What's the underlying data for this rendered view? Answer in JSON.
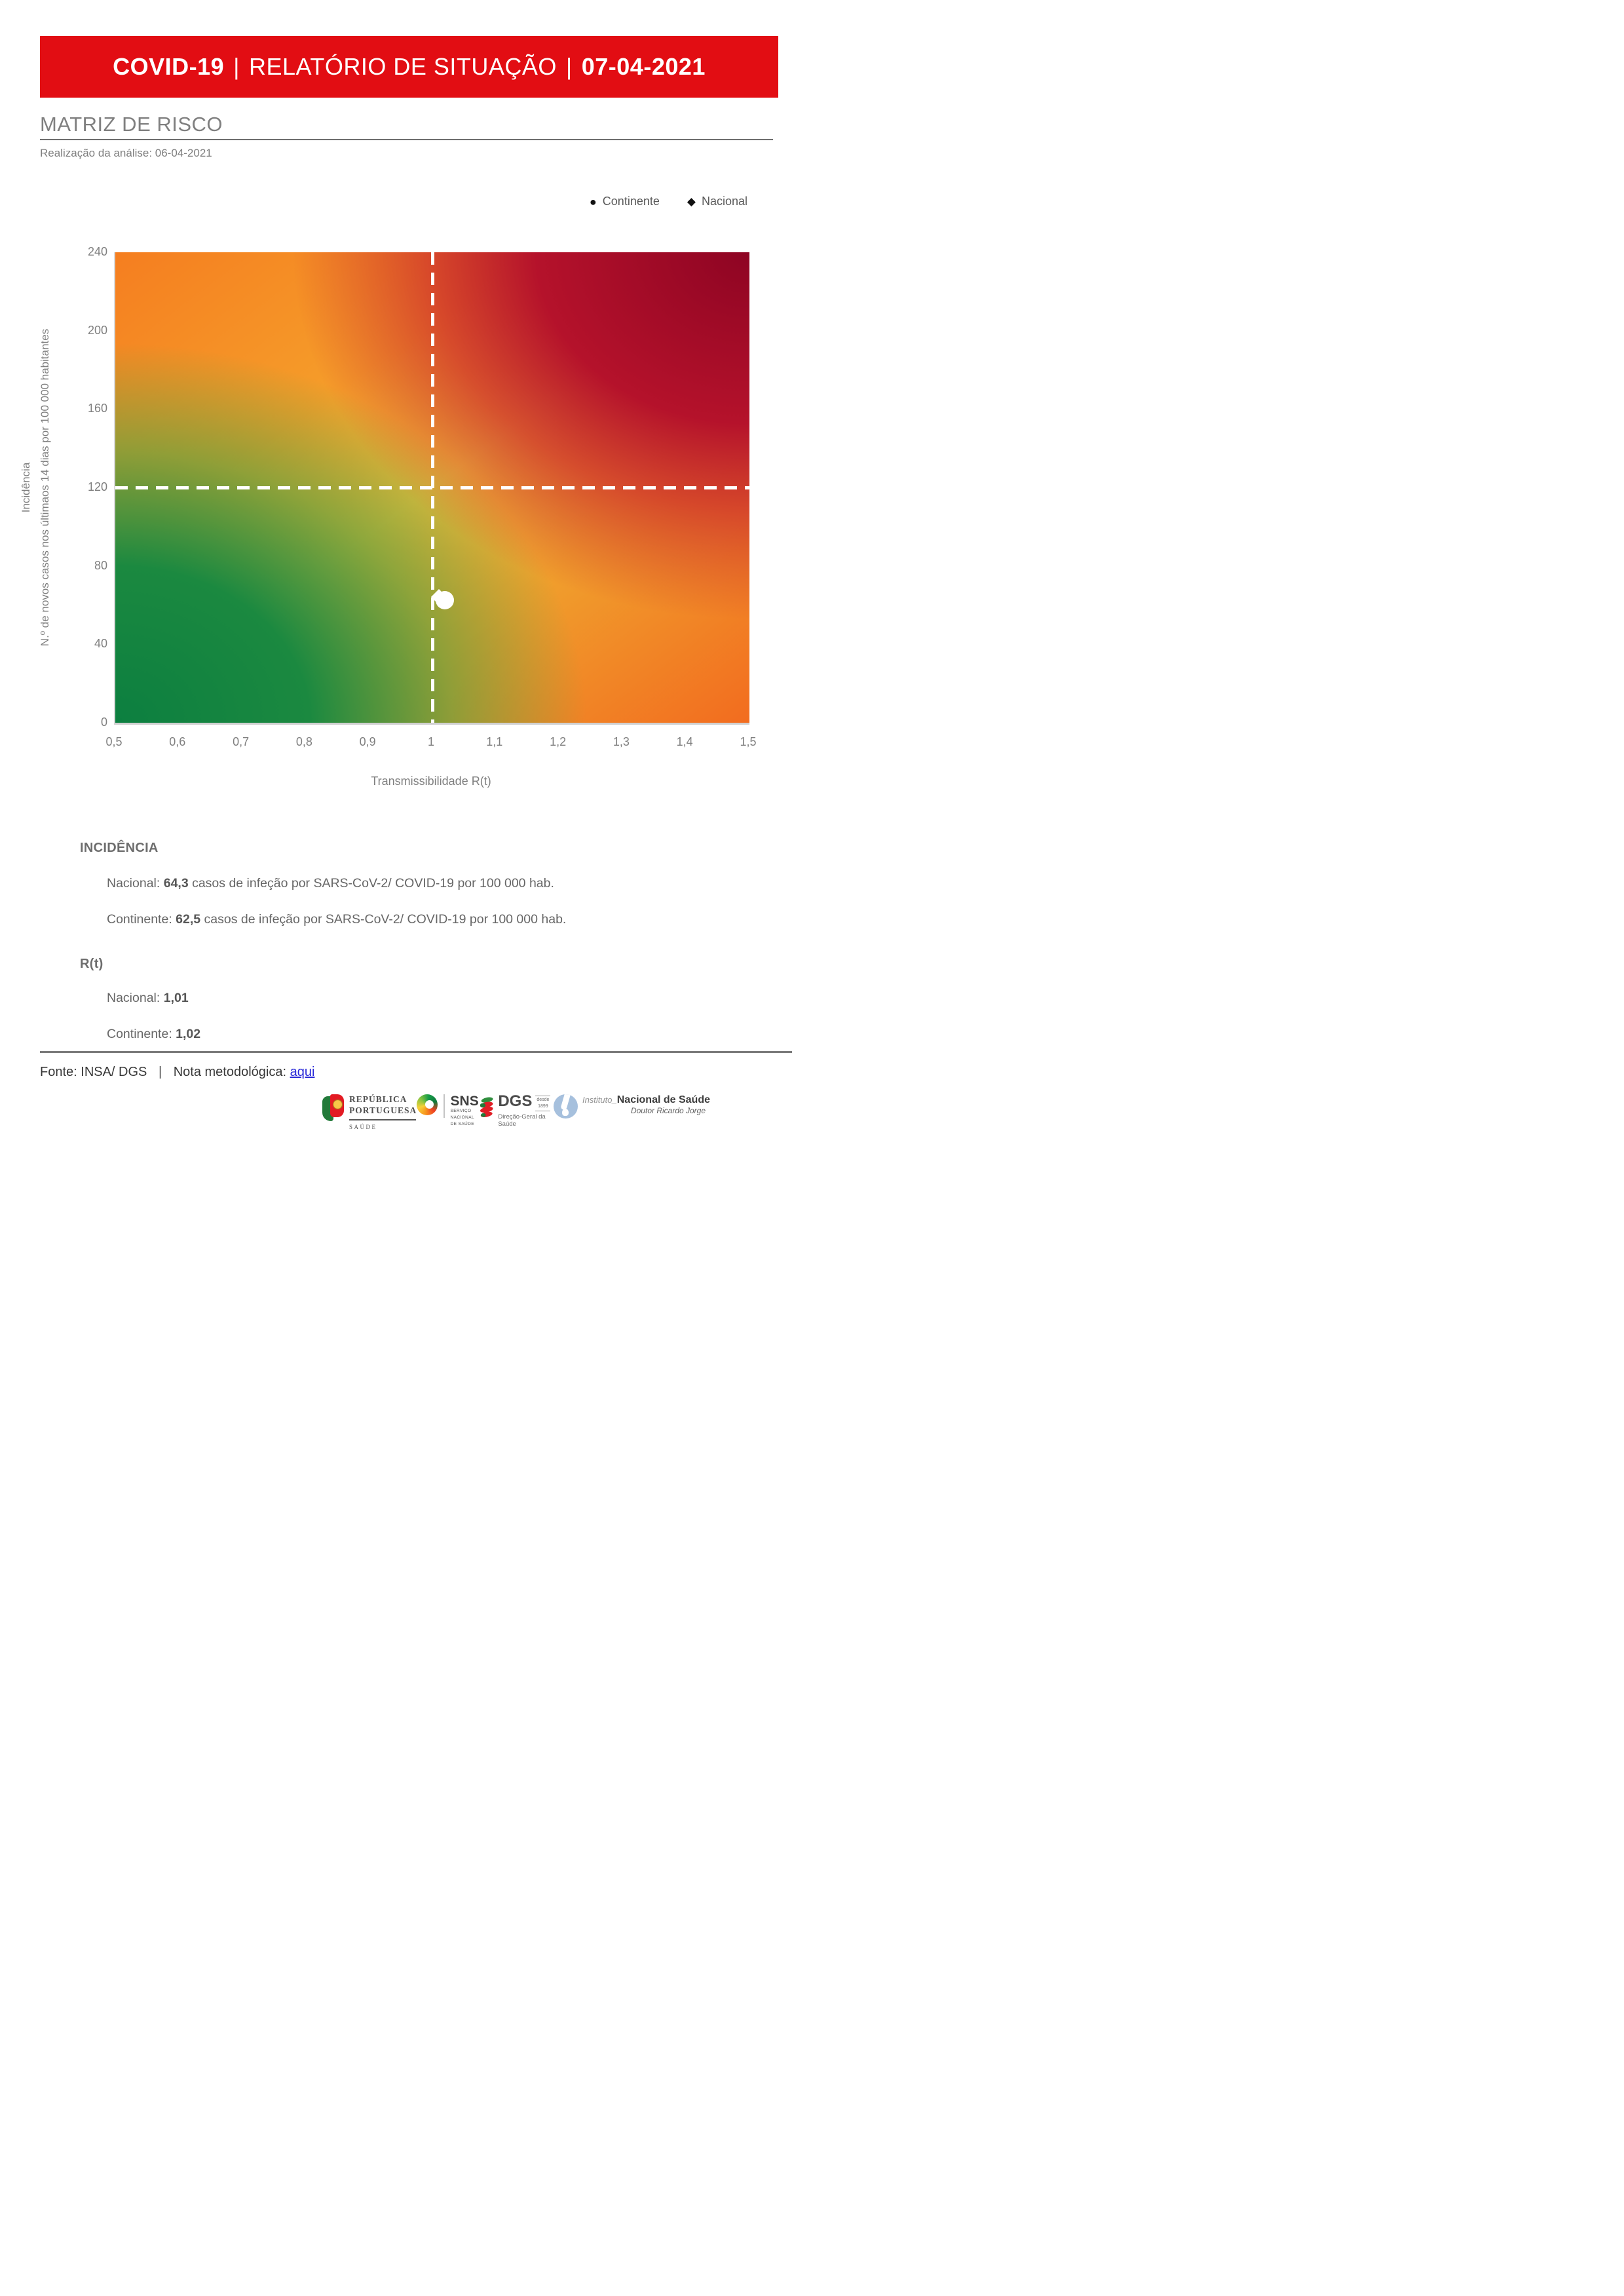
{
  "header": {
    "program": "COVID-19",
    "pipe": "|",
    "report_name": "RELATÓRIO DE SITUAÇÃO",
    "date": "07-04-2021"
  },
  "page": {
    "section_title": "MATRIZ DE RISCO",
    "analysis_note": "Realização da análise: 06-04-2021"
  },
  "legend": {
    "continente_label": "Continente",
    "nacional_label": "Nacional",
    "continente_marker": "●",
    "nacional_marker": "◆"
  },
  "chart_data": {
    "type": "scatter",
    "title": "MATRIZ DE RISCO",
    "xlabel": "Transmissibilidade R(t)",
    "ylabel_line1": "Incidência",
    "ylabel_line2": "N.º de novos casos nos últimaos 14 dias por 100 000 habitantes",
    "xlim": [
      0.5,
      1.5
    ],
    "ylim": [
      0,
      240
    ],
    "x_ticks": [
      "0,5",
      "0,6",
      "0,7",
      "0,8",
      "0,9",
      "1",
      "1,1",
      "1,2",
      "1,3",
      "1,4",
      "1,5"
    ],
    "y_ticks": [
      "240",
      "200",
      "160",
      "120",
      "80",
      "40",
      "0"
    ],
    "grid": false,
    "legend_position": "top-right",
    "threshold_lines": {
      "x": 1,
      "y": 120
    },
    "series": [
      {
        "name": "Continente",
        "marker": "circle",
        "rt": 1.02,
        "incidence": 62.5
      },
      {
        "name": "Nacional",
        "marker": "diamond",
        "rt": 1.01,
        "incidence": 64.3
      }
    ],
    "quadrant_colors": {
      "top_left": "#f57e20",
      "top_right": "#8e0423",
      "bottom_left": "#0c7f40",
      "bottom_right": "#f26c1f",
      "center": "#eebf3e"
    }
  },
  "stats": {
    "incidencia_title": "INCIDÊNCIA",
    "inc_nacional": {
      "label": "Nacional: ",
      "value": "64,3",
      "rest": " casos de infeção por SARS-CoV-2/ COVID-19 por 100 000 hab."
    },
    "inc_continente": {
      "label": "Continente: ",
      "value": "62,5",
      "rest": " casos de infeção por SARS-CoV-2/ COVID-19 por 100 000 hab."
    },
    "rt_title": "R(t)",
    "rt_nacional": {
      "label": "Nacional: ",
      "value": "1,01"
    },
    "rt_continente": {
      "label": "Continente: ",
      "value": "1,02"
    }
  },
  "footer": {
    "fonte": "Fonte: INSA/ DGS",
    "pipe": "|",
    "nota_label": "Nota metodológica:",
    "link_text": "aqui",
    "link_color": "#2828d8",
    "logos": {
      "republica": {
        "line1": "REPÚBLICA",
        "line2": "PORTUGUESA",
        "sub": "SAÚDE"
      },
      "sns": {
        "abbr": "SNS",
        "sub1": "SERVIÇO NACIONAL",
        "sub2": "DE SAÚDE"
      },
      "dgs": {
        "abbr": "DGS",
        "since1": "desde",
        "since2": "1899",
        "sub": "Direção-Geral da Saúde"
      },
      "insa": {
        "pre": "Instituto",
        "sep": "_",
        "name": "Nacional de Saúde",
        "sub": "Doutor Ricardo Jorge"
      }
    }
  },
  "colors": {
    "banner_red": "#e20d13",
    "title_gray": "#7f7f7f",
    "text_gray": "#666666"
  }
}
